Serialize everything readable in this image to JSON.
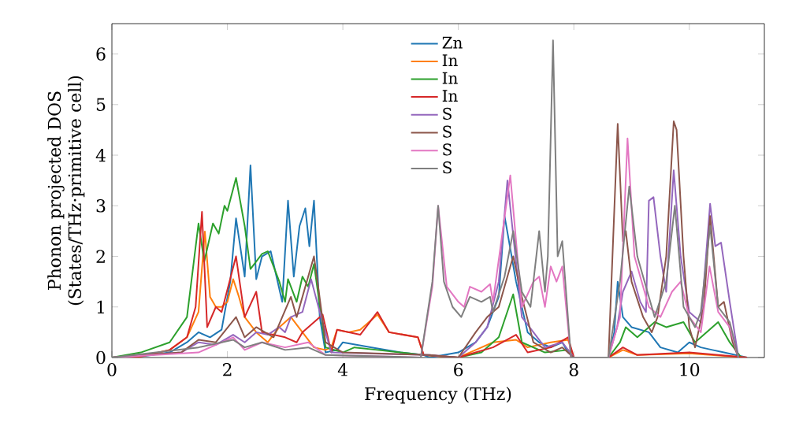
{
  "chart_data": {
    "type": "line",
    "xlabel": "Frequency (THz)",
    "ylabel": "Phonon projected DOS\n(States/THz·primitive cell)",
    "xlim": [
      0,
      11.3
    ],
    "ylim": [
      0,
      6.6
    ],
    "xticks": [
      0,
      2,
      4,
      6,
      8,
      10
    ],
    "yticks": [
      0,
      1,
      2,
      3,
      4,
      5,
      6
    ],
    "legend": "top",
    "grid": false,
    "marker": "none",
    "line_style": "solid",
    "series": [
      {
        "name": "Zn",
        "color": "#1f77b4",
        "x": [
          0,
          0.5,
          1.0,
          1.3,
          1.5,
          1.7,
          1.9,
          2.05,
          2.15,
          2.3,
          2.4,
          2.5,
          2.6,
          2.75,
          2.95,
          3.05,
          3.15,
          3.25,
          3.35,
          3.42,
          3.5,
          3.6,
          3.7,
          3.9,
          4.0,
          4.5,
          5.0,
          5.4,
          5.5,
          6.0,
          6.3,
          6.5,
          6.7,
          6.8,
          7.0,
          7.2,
          7.4,
          7.6,
          7.8,
          7.9,
          8.0,
          8.6,
          8.7,
          8.76,
          8.85,
          9.0,
          9.3,
          9.5,
          9.8,
          10.0,
          10.2,
          10.4,
          10.6,
          10.8,
          11.0
        ],
        "values": [
          0,
          0.02,
          0.1,
          0.3,
          0.5,
          0.4,
          0.55,
          1.5,
          2.75,
          1.6,
          3.8,
          1.55,
          2.0,
          2.1,
          1.1,
          3.1,
          1.6,
          2.6,
          2.95,
          2.2,
          3.1,
          0.8,
          0.1,
          0.15,
          0.3,
          0.2,
          0.1,
          0.05,
          0,
          0.1,
          0.3,
          0.6,
          1.2,
          2.8,
          1.5,
          0.5,
          0.3,
          0.2,
          0.3,
          0.1,
          0,
          0,
          0.5,
          1.5,
          0.8,
          0.6,
          0.5,
          0.2,
          0.1,
          0.3,
          0.2,
          0.15,
          0.1,
          0.05,
          0
        ]
      },
      {
        "name": "In",
        "color": "#ff7f0e",
        "x": [
          0,
          0.5,
          1.0,
          1.3,
          1.5,
          1.61,
          1.7,
          1.8,
          1.9,
          2.0,
          2.1,
          2.2,
          2.3,
          2.5,
          2.7,
          2.9,
          3.1,
          3.3,
          3.5,
          3.7,
          3.8,
          3.9,
          4.1,
          4.3,
          4.6,
          4.8,
          5.3,
          5.4,
          6.0,
          6.3,
          6.6,
          7.0,
          7.2,
          7.6,
          7.9,
          8.0,
          8.6,
          8.85,
          9.1,
          10.0,
          11.0
        ],
        "values": [
          0,
          0.02,
          0.15,
          0.4,
          0.9,
          2.49,
          1.2,
          1.0,
          1.0,
          1.1,
          1.55,
          1.2,
          0.8,
          0.5,
          0.3,
          0.6,
          0.8,
          0.5,
          0.2,
          0.15,
          0.2,
          0.55,
          0.5,
          0.55,
          0.85,
          0.5,
          0.4,
          0.05,
          0,
          0.15,
          0.3,
          0.35,
          0.2,
          0.3,
          0.35,
          0,
          0,
          0.15,
          0.05,
          0.08,
          0
        ]
      },
      {
        "name": "In",
        "color": "#2ca02c",
        "x": [
          0,
          0.5,
          1.0,
          1.3,
          1.5,
          1.6,
          1.75,
          1.85,
          1.95,
          2.0,
          2.15,
          2.3,
          2.4,
          2.6,
          2.7,
          2.9,
          3.0,
          3.05,
          3.2,
          3.3,
          3.4,
          3.5,
          3.7,
          4.0,
          4.2,
          4.6,
          5.4,
          6.0,
          6.4,
          6.7,
          6.95,
          7.1,
          7.5,
          7.9,
          8.0,
          8.6,
          8.8,
          8.9,
          9.1,
          9.4,
          9.6,
          9.9,
          10.1,
          10.5,
          10.7,
          10.9
        ],
        "values": [
          0,
          0.1,
          0.3,
          0.8,
          2.65,
          1.9,
          2.65,
          2.45,
          3.0,
          2.9,
          3.55,
          2.6,
          1.75,
          2.05,
          2.1,
          1.5,
          1.1,
          1.55,
          1.1,
          1.6,
          1.4,
          1.85,
          0.2,
          0.1,
          0.2,
          0.15,
          0.05,
          0,
          0.1,
          0.4,
          1.25,
          0.3,
          0.1,
          0.15,
          0,
          0,
          0.3,
          0.6,
          0.4,
          0.7,
          0.6,
          0.7,
          0.3,
          0.7,
          0.3,
          0
        ]
      },
      {
        "name": "In",
        "color": "#d62728",
        "x": [
          0,
          0.5,
          1.0,
          1.3,
          1.45,
          1.56,
          1.65,
          1.8,
          1.9,
          2.15,
          2.3,
          2.5,
          2.6,
          3.0,
          3.2,
          3.3,
          3.65,
          3.8,
          3.9,
          4.3,
          4.6,
          4.8,
          5.3,
          5.4,
          6.0,
          6.3,
          6.6,
          7.0,
          7.2,
          7.6,
          7.9,
          8.0,
          8.6,
          8.85,
          9.1,
          10.0,
          11.0
        ],
        "values": [
          0,
          0.02,
          0.15,
          0.4,
          1.0,
          2.88,
          0.6,
          1.0,
          0.9,
          2.0,
          0.8,
          1.3,
          0.5,
          0.4,
          0.3,
          0.5,
          0.85,
          0.1,
          0.55,
          0.45,
          0.9,
          0.5,
          0.4,
          0.05,
          0,
          0.1,
          0.2,
          0.45,
          0.1,
          0.2,
          0.4,
          0,
          0,
          0.2,
          0.05,
          0.1,
          0
        ]
      },
      {
        "name": "S",
        "color": "#9467bd",
        "x": [
          0,
          1.2,
          1.5,
          1.8,
          2.1,
          2.3,
          2.5,
          2.7,
          2.9,
          3.0,
          3.1,
          3.3,
          3.45,
          3.6,
          3.8,
          5.5,
          6.0,
          6.3,
          6.5,
          6.7,
          6.85,
          7.1,
          7.5,
          7.8,
          8.0,
          8.6,
          8.75,
          8.85,
          9.0,
          9.15,
          9.25,
          9.3,
          9.38,
          9.5,
          9.6,
          9.73,
          9.85,
          10.0,
          10.2,
          10.36,
          10.45,
          10.55,
          10.7,
          10.85
        ],
        "values": [
          0,
          0.1,
          0.3,
          0.25,
          0.45,
          0.3,
          0.5,
          0.45,
          0.6,
          0.5,
          0.8,
          0.9,
          1.55,
          0.9,
          0.1,
          0.05,
          0,
          0.3,
          0.6,
          1.5,
          3.5,
          0.8,
          0.2,
          0.3,
          0,
          0,
          0.6,
          1.3,
          1.7,
          1.1,
          0.9,
          3.1,
          3.17,
          2.0,
          1.3,
          3.7,
          2.0,
          0.9,
          0.7,
          3.04,
          2.2,
          2.27,
          1.1,
          0
        ]
      },
      {
        "name": "S",
        "color": "#8c564b",
        "x": [
          0,
          1.2,
          1.5,
          1.8,
          2.15,
          2.3,
          2.5,
          2.8,
          3.1,
          3.2,
          3.5,
          3.55,
          3.7,
          4.0,
          5.5,
          6.0,
          6.3,
          6.5,
          6.7,
          6.95,
          7.1,
          7.3,
          7.45,
          7.6,
          7.8,
          8.0,
          8.6,
          8.76,
          8.85,
          8.9,
          9.0,
          9.2,
          9.35,
          9.45,
          9.6,
          9.73,
          9.78,
          9.9,
          10.0,
          10.1,
          10.25,
          10.36,
          10.5,
          10.6,
          10.75,
          10.85
        ],
        "values": [
          0,
          0.1,
          0.35,
          0.3,
          0.8,
          0.4,
          0.6,
          0.4,
          1.2,
          0.8,
          2.0,
          1.6,
          0.3,
          0.1,
          0.05,
          0,
          0.5,
          0.8,
          1.0,
          2.0,
          1.2,
          0.3,
          0.2,
          0.1,
          0.2,
          0,
          0,
          4.62,
          2.3,
          2.5,
          1.5,
          0.8,
          0.5,
          0.8,
          2.0,
          4.67,
          4.5,
          2.0,
          0.6,
          0.2,
          1.0,
          2.8,
          1.0,
          1.1,
          0.3,
          0
        ]
      },
      {
        "name": "S",
        "color": "#e377c2",
        "x": [
          0,
          1.5,
          2.1,
          2.3,
          2.6,
          3.0,
          3.4,
          3.7,
          5.35,
          5.55,
          5.65,
          5.8,
          6.0,
          6.1,
          6.2,
          6.4,
          6.55,
          6.6,
          6.9,
          7.1,
          7.3,
          7.4,
          7.5,
          7.6,
          7.7,
          7.8,
          7.95,
          8.6,
          8.8,
          8.93,
          9.05,
          9.3,
          9.5,
          9.7,
          9.85,
          10.0,
          10.2,
          10.35,
          10.5,
          10.7,
          10.85
        ],
        "values": [
          0,
          0.1,
          0.4,
          0.15,
          0.3,
          0.2,
          0.3,
          0.05,
          0,
          1.4,
          3.0,
          1.4,
          1.1,
          1.0,
          1.4,
          1.3,
          1.45,
          1.1,
          3.6,
          1.0,
          1.5,
          1.6,
          1.0,
          1.8,
          1.5,
          1.8,
          0,
          0,
          0.8,
          4.33,
          2.0,
          1.0,
          0.8,
          1.3,
          1.5,
          0.8,
          0.5,
          1.8,
          0.9,
          0.6,
          0
        ]
      },
      {
        "name": "S",
        "color": "#7f7f7f",
        "x": [
          0,
          1.5,
          2.1,
          2.3,
          2.6,
          3.0,
          3.4,
          3.7,
          5.35,
          5.55,
          5.65,
          5.75,
          5.9,
          6.05,
          6.2,
          6.4,
          6.55,
          6.6,
          6.8,
          6.95,
          7.1,
          7.25,
          7.4,
          7.5,
          7.55,
          7.64,
          7.72,
          7.8,
          7.95,
          8.6,
          8.8,
          8.96,
          9.1,
          9.3,
          9.4,
          9.6,
          9.75,
          9.9,
          10.1,
          10.2,
          10.36,
          10.5,
          10.7,
          10.85
        ],
        "values": [
          0,
          0.2,
          0.35,
          0.2,
          0.3,
          0.15,
          0.2,
          0.05,
          0,
          1.5,
          3.0,
          1.5,
          1.0,
          0.8,
          1.2,
          1.1,
          1.2,
          0.9,
          1.6,
          2.5,
          1.3,
          1.0,
          2.5,
          1.3,
          2.0,
          6.27,
          2.0,
          2.3,
          0,
          0,
          1.5,
          3.38,
          2.0,
          1.2,
          0.8,
          1.5,
          3.0,
          1.0,
          0.6,
          0.9,
          2.6,
          1.0,
          0.7,
          0
        ]
      }
    ]
  }
}
